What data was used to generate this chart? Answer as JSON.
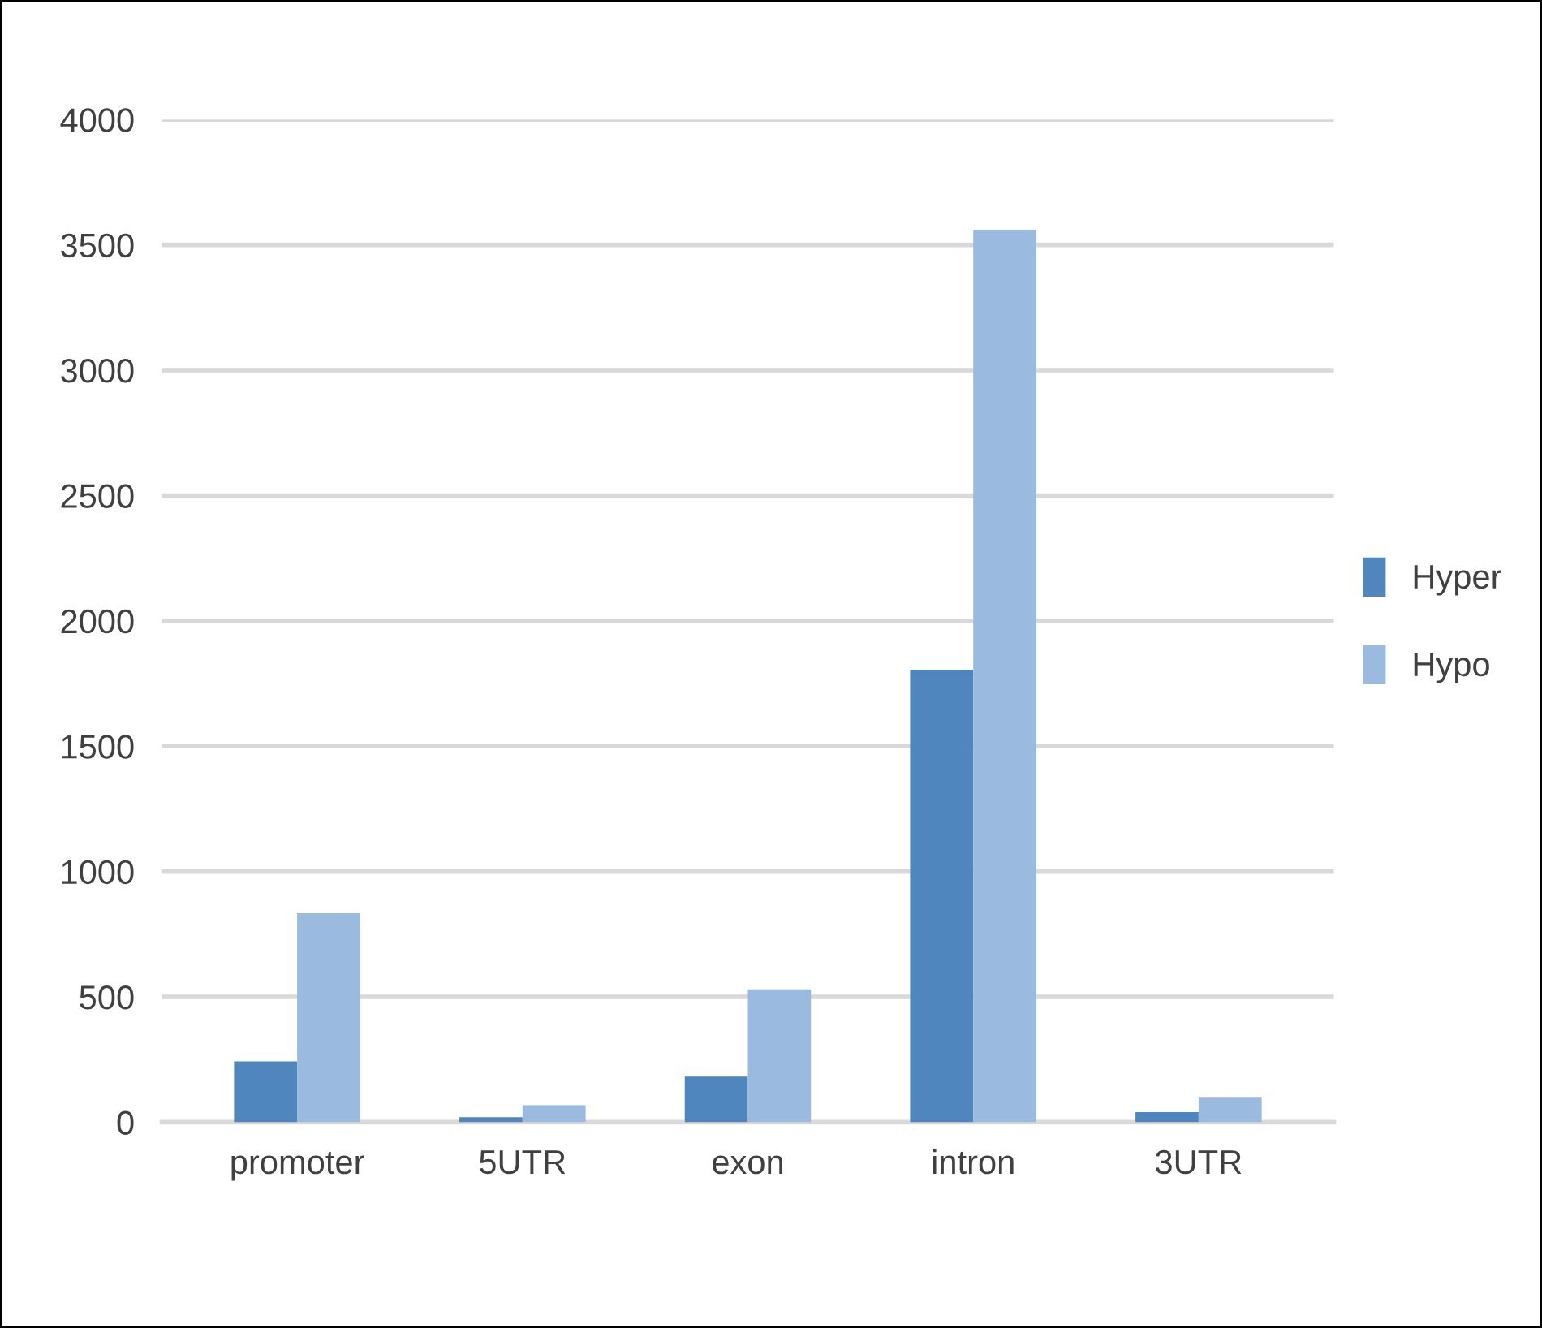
{
  "chart_data": {
    "type": "bar",
    "categories": [
      "promoter",
      "5UTR",
      "exon",
      "intron",
      "3UTR"
    ],
    "series": [
      {
        "name": "Hyper",
        "color": "#4f86bd",
        "values": [
          243,
          20,
          182,
          1804,
          40
        ]
      },
      {
        "name": "Hypo",
        "color": "#9abae0",
        "values": [
          834,
          68,
          530,
          3560,
          98
        ]
      }
    ],
    "ylim": [
      0,
      4000
    ],
    "yticks": [
      0,
      500,
      1000,
      1500,
      2000,
      2500,
      3000,
      3500,
      4000
    ],
    "grid": "y",
    "legend": "right"
  }
}
